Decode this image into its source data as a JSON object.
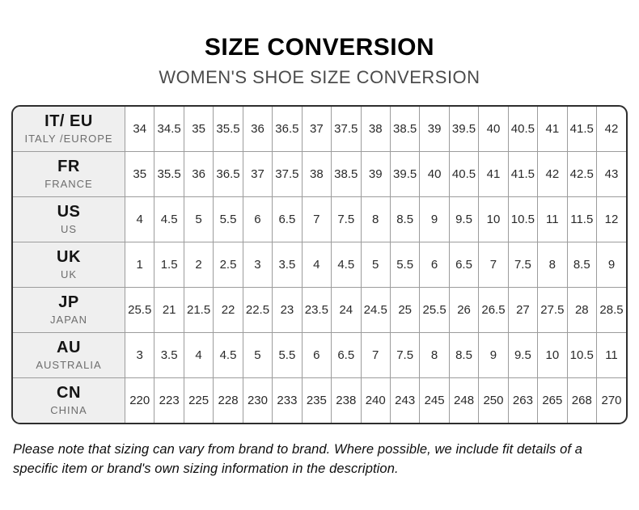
{
  "page": {
    "title": "SIZE CONVERSION",
    "subtitle": "WOMEN'S SHOE SIZE CONVERSION",
    "note": "Please note that sizing can vary from brand to brand. Where possible, we include fit details of a specific item or brand's own sizing information in the description."
  },
  "colors": {
    "outer_border": "#2e2e2e",
    "grid_line": "#9c9c9c",
    "header_cell_bg": "#efefef",
    "title_color": "#000000",
    "subtitle_color": "#4b4b4b"
  },
  "table": {
    "header_column": "region",
    "columns_per_row": 17,
    "rows": [
      {
        "code": "IT/ EU",
        "region": "ITALY /EUROPE",
        "values": [
          "34",
          "34.5",
          "35",
          "35.5",
          "36",
          "36.5",
          "37",
          "37.5",
          "38",
          "38.5",
          "39",
          "39.5",
          "40",
          "40.5",
          "41",
          "41.5",
          "42"
        ]
      },
      {
        "code": "FR",
        "region": "FRANCE",
        "values": [
          "35",
          "35.5",
          "36",
          "36.5",
          "37",
          "37.5",
          "38",
          "38.5",
          "39",
          "39.5",
          "40",
          "40.5",
          "41",
          "41.5",
          "42",
          "42.5",
          "43"
        ]
      },
      {
        "code": "US",
        "region": "US",
        "values": [
          "4",
          "4.5",
          "5",
          "5.5",
          "6",
          "6.5",
          "7",
          "7.5",
          "8",
          "8.5",
          "9",
          "9.5",
          "10",
          "10.5",
          "11",
          "11.5",
          "12"
        ]
      },
      {
        "code": "UK",
        "region": "UK",
        "values": [
          "1",
          "1.5",
          "2",
          "2.5",
          "3",
          "3.5",
          "4",
          "4.5",
          "5",
          "5.5",
          "6",
          "6.5",
          "7",
          "7.5",
          "8",
          "8.5",
          "9"
        ]
      },
      {
        "code": "JP",
        "region": "JAPAN",
        "values": [
          "25.5",
          "21",
          "21.5",
          "22",
          "22.5",
          "23",
          "23.5",
          "24",
          "24.5",
          "25",
          "25.5",
          "26",
          "26.5",
          "27",
          "27.5",
          "28",
          "28.5"
        ]
      },
      {
        "code": "AU",
        "region": "AUSTRALIA",
        "values": [
          "3",
          "3.5",
          "4",
          "4.5",
          "5",
          "5.5",
          "6",
          "6.5",
          "7",
          "7.5",
          "8",
          "8.5",
          "9",
          "9.5",
          "10",
          "10.5",
          "11"
        ]
      },
      {
        "code": "CN",
        "region": "CHINA",
        "values": [
          "220",
          "223",
          "225",
          "228",
          "230",
          "233",
          "235",
          "238",
          "240",
          "243",
          "245",
          "248",
          "250",
          "263",
          "265",
          "268",
          "270"
        ]
      }
    ]
  }
}
